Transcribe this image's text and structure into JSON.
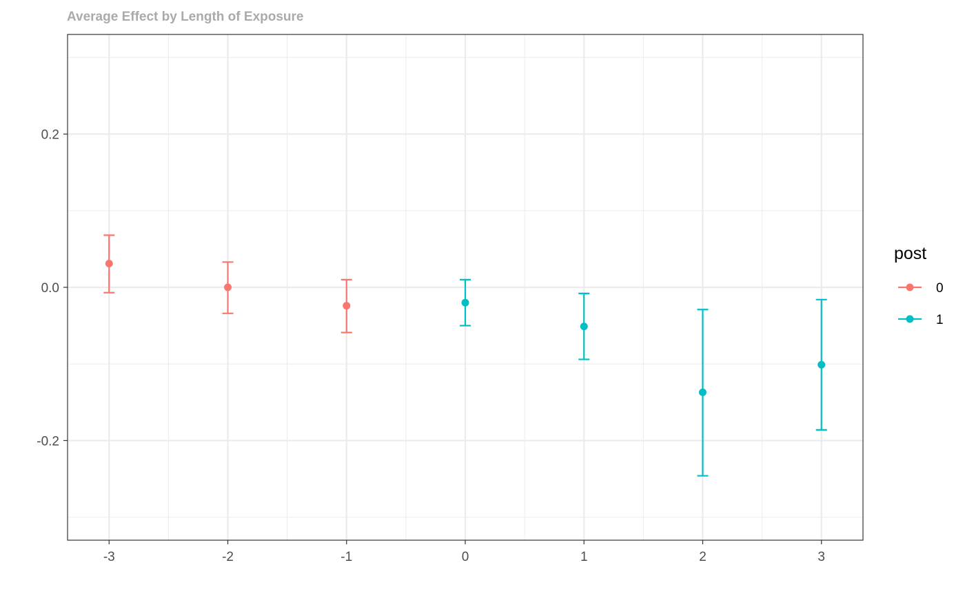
{
  "chart_data": {
    "type": "scatter",
    "title": "Average Effect by Length of Exposure",
    "xlabel": "",
    "ylabel": "",
    "x_ticks": [
      "-3",
      "-2",
      "-1",
      "0",
      "1",
      "2",
      "3"
    ],
    "y_ticks": [
      "0.2",
      "0.0",
      "-0.2"
    ],
    "xlim": [
      -3.35,
      3.35
    ],
    "ylim": [
      -0.33,
      0.33
    ],
    "grid": true,
    "error_bars": true,
    "legend": {
      "title": "post",
      "position": "right",
      "entries": [
        {
          "label": "0",
          "color": "#F8766D"
        },
        {
          "label": "1",
          "color": "#00BFC4"
        }
      ]
    },
    "series": [
      {
        "name": "0",
        "color": "#F8766D",
        "points": [
          {
            "x": -3,
            "y": 0.031,
            "lo": -0.007,
            "hi": 0.068
          },
          {
            "x": -2,
            "y": 0.0,
            "lo": -0.034,
            "hi": 0.033
          },
          {
            "x": -1,
            "y": -0.024,
            "lo": -0.059,
            "hi": 0.01
          }
        ]
      },
      {
        "name": "1",
        "color": "#00BFC4",
        "points": [
          {
            "x": 0,
            "y": -0.02,
            "lo": -0.05,
            "hi": 0.01
          },
          {
            "x": 1,
            "y": -0.051,
            "lo": -0.094,
            "hi": -0.008
          },
          {
            "x": 2,
            "y": -0.137,
            "lo": -0.246,
            "hi": -0.029
          },
          {
            "x": 3,
            "y": -0.101,
            "lo": -0.186,
            "hi": -0.016
          }
        ]
      }
    ]
  }
}
